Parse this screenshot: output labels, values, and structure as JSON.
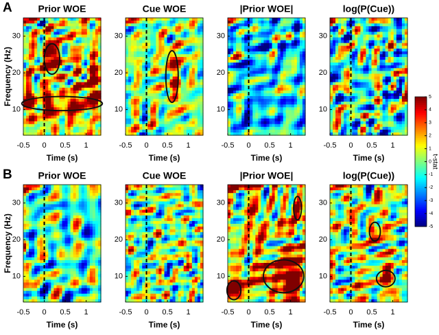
{
  "panel_labels": [
    "A",
    "B"
  ],
  "chart_data": [
    {
      "type": "heatmap",
      "title": "Prior WOE",
      "xlabel": "Time (s)",
      "ylabel": "Frequency (Hz)",
      "xlim": [
        -0.5,
        1.35
      ],
      "ylim": [
        3,
        35
      ],
      "xticks": [
        -0.5,
        0,
        0.5,
        1
      ],
      "yticks": [
        10,
        20,
        30
      ],
      "vline": 0
    },
    {
      "type": "heatmap",
      "title": "Cue WOE",
      "xlabel": "Time (s)",
      "xlim": [
        -0.5,
        1.35
      ],
      "ylim": [
        3,
        35
      ],
      "xticks": [
        -0.5,
        0,
        0.5,
        1
      ],
      "yticks": [
        10,
        20,
        30
      ],
      "vline": 0
    },
    {
      "type": "heatmap",
      "title": "|Prior WOE|",
      "xlabel": "Time (s)",
      "xlim": [
        -0.5,
        1.35
      ],
      "ylim": [
        3,
        35
      ],
      "xticks": [
        -0.5,
        0,
        0.5,
        1
      ],
      "yticks": [
        10,
        20,
        30
      ],
      "vline": 0
    },
    {
      "type": "heatmap",
      "title": "log(P(Cue))",
      "xlabel": "Time (s)",
      "xlim": [
        -0.5,
        1.35
      ],
      "ylim": [
        3,
        35
      ],
      "xticks": [
        -0.5,
        0,
        0.5,
        1
      ],
      "yticks": [
        10,
        20,
        30
      ],
      "vline": 0
    },
    {
      "type": "heatmap",
      "title": "Prior WOE",
      "xlabel": "Time (s)",
      "ylabel": "Frequency (Hz)",
      "xlim": [
        -0.5,
        1.35
      ],
      "ylim": [
        3,
        35
      ],
      "xticks": [
        -0.5,
        0,
        0.5,
        1
      ],
      "yticks": [
        10,
        20,
        30
      ],
      "vline": 0
    },
    {
      "type": "heatmap",
      "title": "Cue WOE",
      "xlabel": "Time (s)",
      "xlim": [
        -0.5,
        1.35
      ],
      "ylim": [
        3,
        35
      ],
      "xticks": [
        -0.5,
        0,
        0.5,
        1
      ],
      "yticks": [
        10,
        20,
        30
      ],
      "vline": 0
    },
    {
      "type": "heatmap",
      "title": "|Prior WOE|",
      "xlabel": "Time (s)",
      "xlim": [
        -0.5,
        1.35
      ],
      "ylim": [
        3,
        35
      ],
      "xticks": [
        -0.5,
        0,
        0.5,
        1
      ],
      "yticks": [
        10,
        20,
        30
      ],
      "vline": 0
    },
    {
      "type": "heatmap",
      "title": "log(P(Cue))",
      "xlabel": "Time (s)",
      "xlim": [
        -0.5,
        1.35
      ],
      "ylim": [
        3,
        35
      ],
      "xticks": [
        -0.5,
        0,
        0.5,
        1
      ],
      "yticks": [
        10,
        20,
        30
      ],
      "vline": 0
    },
    {
      "type": "colorbar",
      "label": "t-stat",
      "ylim": [
        -5,
        5
      ],
      "yticks": [
        5,
        4,
        3,
        2,
        1,
        0,
        -1,
        -2,
        -3,
        -4,
        -5
      ]
    }
  ]
}
